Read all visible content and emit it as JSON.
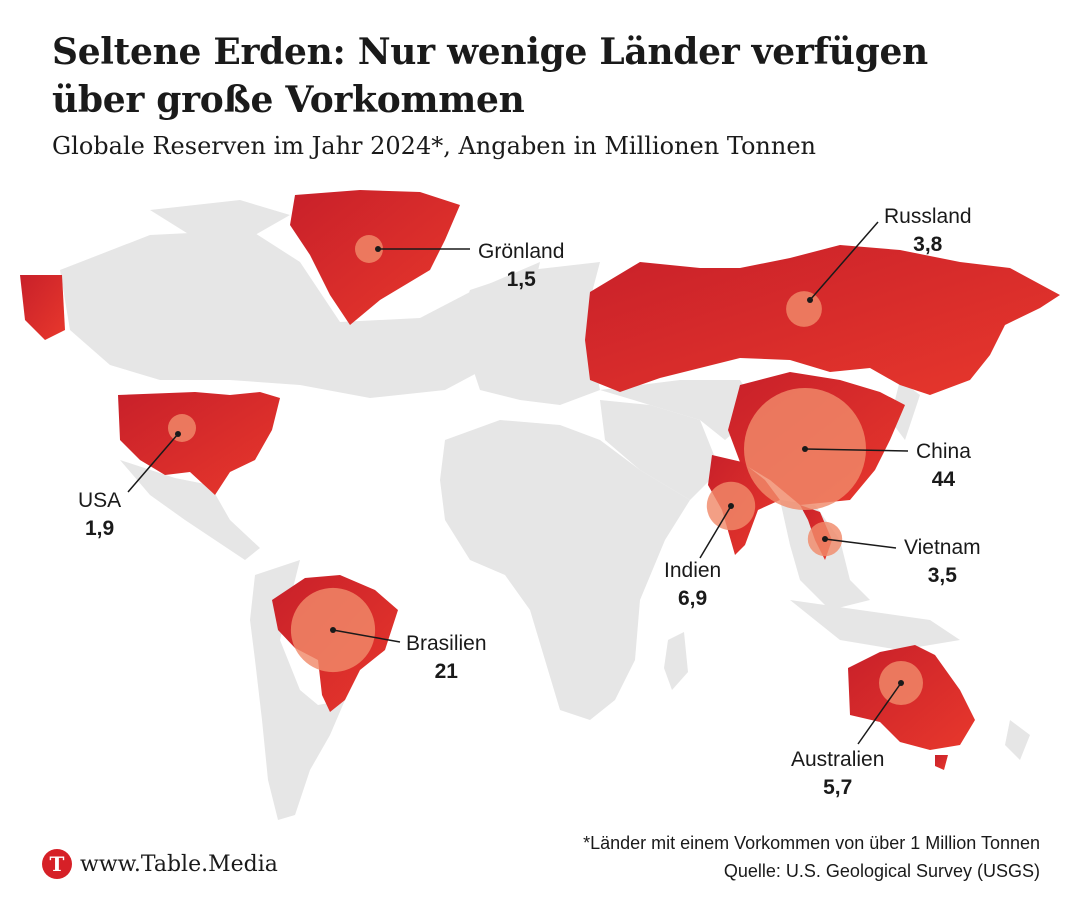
{
  "header": {
    "title": "Seltene Erden: Nur wenige Länder verfügen über große Vorkommen",
    "subtitle": "Globale Reserven im Jahr 2024*, Angaben in Millionen Tonnen"
  },
  "colors": {
    "highlight_country": "#d42a2a",
    "bubble": "#f08a6a",
    "other_land": "#e6e6e6"
  },
  "countries": [
    {
      "name": "Grönland",
      "value": "1,5"
    },
    {
      "name": "Russland",
      "value": "3,8"
    },
    {
      "name": "USA",
      "value": "1,9"
    },
    {
      "name": "China",
      "value": "44"
    },
    {
      "name": "Indien",
      "value": "6,9"
    },
    {
      "name": "Vietnam",
      "value": "3,5"
    },
    {
      "name": "Brasilien",
      "value": "21"
    },
    {
      "name": "Australien",
      "value": "5,7"
    }
  ],
  "footer": {
    "note": "*Länder mit einem Vorkommen von über 1 Million Tonnen",
    "source": "Quelle: U.S. Geological Survey (USGS)",
    "brand": "www.Table.Media",
    "logo_letter": "T"
  }
}
